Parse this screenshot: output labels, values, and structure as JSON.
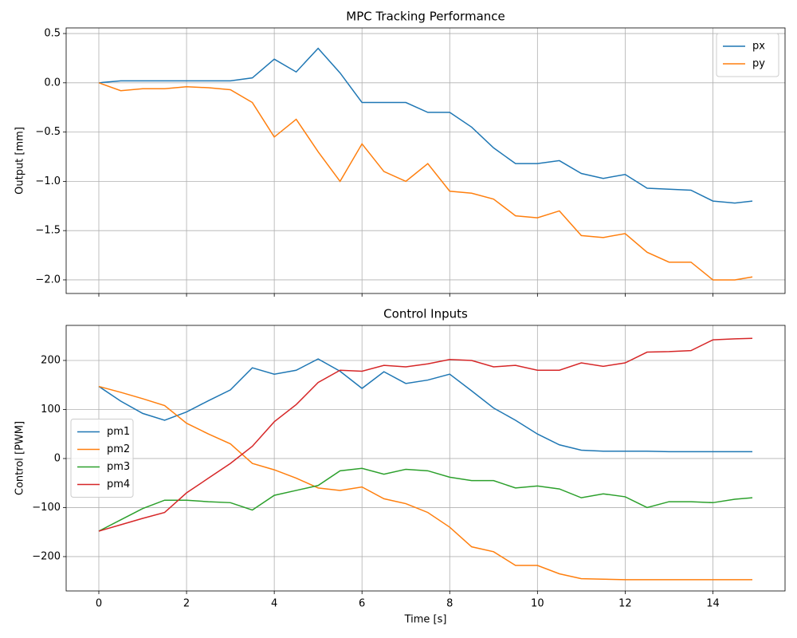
{
  "chart_data": [
    {
      "type": "line",
      "title": "MPC Tracking Performance",
      "ylabel": "Output [mm]",
      "x": [
        0,
        0.5,
        1,
        1.5,
        2,
        2.5,
        3,
        3.5,
        4,
        4.5,
        5,
        5.5,
        6,
        6.5,
        7,
        7.5,
        8,
        8.5,
        9,
        9.5,
        10,
        10.5,
        11,
        11.5,
        12,
        12.5,
        13,
        13.5,
        14,
        14.5,
        14.9
      ],
      "series": [
        {
          "name": "px",
          "color": "#1f77b4",
          "values": [
            0,
            0.02,
            0.02,
            0.02,
            0.02,
            0.02,
            0.02,
            0.05,
            0.24,
            0.11,
            0.35,
            0.1,
            -0.2,
            -0.2,
            -0.2,
            -0.3,
            -0.3,
            -0.45,
            -0.66,
            -0.82,
            -0.82,
            -0.79,
            -0.92,
            -0.97,
            -0.93,
            -1.07,
            -1.08,
            -1.09,
            -1.2,
            -1.22,
            -1.2
          ]
        },
        {
          "name": "py",
          "color": "#ff7f0e",
          "values": [
            0,
            -0.08,
            -0.06,
            -0.06,
            -0.04,
            -0.05,
            -0.07,
            -0.2,
            -0.55,
            -0.37,
            -0.7,
            -1.0,
            -0.62,
            -0.9,
            -1.0,
            -0.82,
            -1.1,
            -1.12,
            -1.18,
            -1.35,
            -1.37,
            -1.3,
            -1.55,
            -1.57,
            -1.53,
            -1.72,
            -1.82,
            -1.82,
            -2.0,
            -2.0,
            -1.97
          ]
        }
      ],
      "xlim": [
        -0.745,
        15.645
      ],
      "ylim": [
        -2.138,
        0.557
      ],
      "yticks": [
        {
          "value": -2,
          "label": "−2.0"
        },
        {
          "value": -1.5,
          "label": "−1.5"
        },
        {
          "value": -1,
          "label": "−1.0"
        },
        {
          "value": -0.5,
          "label": "−0.5"
        },
        {
          "value": 0,
          "label": "0.0"
        },
        {
          "value": 0.5,
          "label": "0.5"
        }
      ],
      "grid": true,
      "legend": "upper-right"
    },
    {
      "type": "line",
      "title": "Control Inputs",
      "xlabel": "Time [s]",
      "ylabel": "Control [PWM]",
      "x": [
        0,
        0.5,
        1,
        1.5,
        2,
        2.5,
        3,
        3.5,
        4,
        4.5,
        5,
        5.5,
        6,
        6.5,
        7,
        7.5,
        8,
        8.5,
        9,
        9.5,
        10,
        10.5,
        11,
        11.5,
        12,
        12.5,
        13,
        13.5,
        14,
        14.5,
        14.9
      ],
      "series": [
        {
          "name": "pm1",
          "color": "#1f77b4",
          "values": [
            147,
            117,
            92,
            78,
            95,
            118,
            140,
            185,
            172,
            180,
            203,
            178,
            143,
            177,
            153,
            160,
            172,
            138,
            103,
            78,
            50,
            28,
            17,
            15,
            15,
            15,
            14,
            14,
            14,
            14,
            14
          ]
        },
        {
          "name": "pm2",
          "color": "#ff7f0e",
          "values": [
            147,
            135,
            122,
            108,
            72,
            50,
            30,
            -10,
            -23,
            -40,
            -60,
            -65,
            -58,
            -82,
            -92,
            -110,
            -140,
            -180,
            -190,
            -218,
            -218,
            -235,
            -245,
            -246,
            -247,
            -247,
            -247,
            -247,
            -247,
            -247,
            -247
          ]
        },
        {
          "name": "pm3",
          "color": "#2ca02c",
          "values": [
            -148,
            -125,
            -102,
            -85,
            -85,
            -88,
            -90,
            -105,
            -75,
            -65,
            -55,
            -25,
            -20,
            -32,
            -22,
            -25,
            -38,
            -45,
            -45,
            -60,
            -56,
            -62,
            -80,
            -72,
            -78,
            -100,
            -88,
            -88,
            -90,
            -83,
            -80
          ]
        },
        {
          "name": "pm4",
          "color": "#d62728",
          "values": [
            -148,
            -135,
            -122,
            -110,
            -70,
            -40,
            -10,
            25,
            75,
            110,
            155,
            180,
            178,
            190,
            187,
            193,
            202,
            200,
            187,
            190,
            180,
            180,
            195,
            188,
            195,
            217,
            218,
            220,
            242,
            244,
            245
          ]
        }
      ],
      "xlim": [
        -0.745,
        15.645
      ],
      "ylim": [
        -270,
        271.5
      ],
      "xticks": [
        0,
        2,
        4,
        6,
        8,
        10,
        12,
        14
      ],
      "yticks": [
        {
          "value": -200,
          "label": "−200"
        },
        {
          "value": -100,
          "label": "−100"
        },
        0,
        100,
        200
      ],
      "grid": true,
      "legend": "center-left"
    }
  ]
}
